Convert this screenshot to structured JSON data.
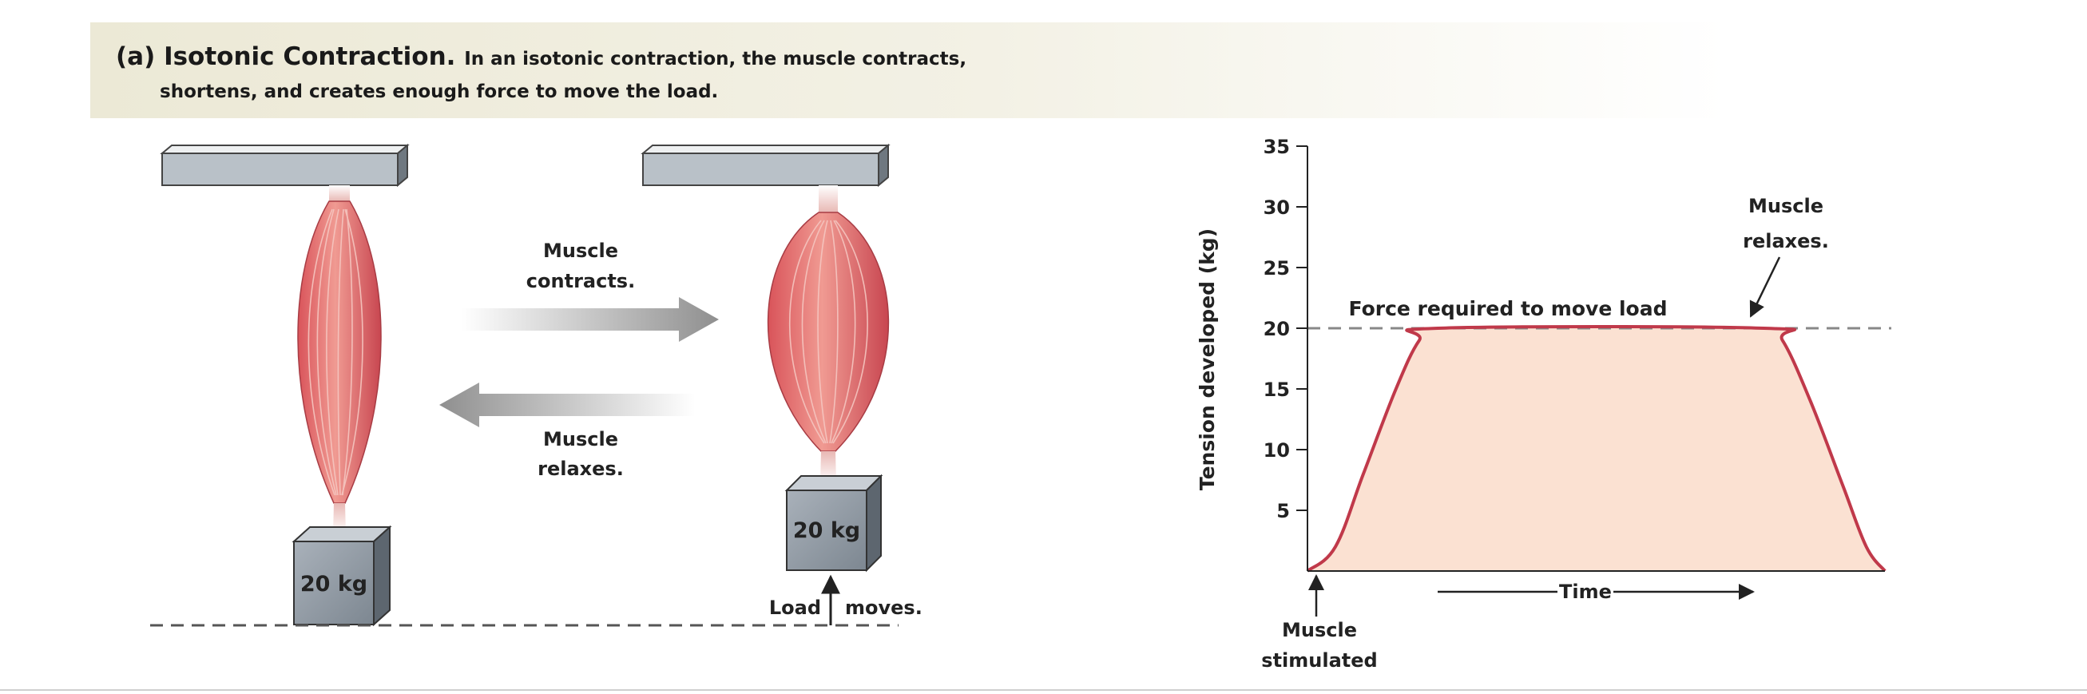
{
  "header": {
    "tag": "(a)",
    "title": "Isotonic Contraction.",
    "desc_line1": "In an isotonic contraction, the muscle contracts,",
    "desc_line2": "shortens, and creates enough force to move the load."
  },
  "diagram": {
    "load_label": "20 kg",
    "arrow_contracts": [
      "Muscle",
      "contracts."
    ],
    "arrow_relaxes": [
      "Muscle",
      "relaxes."
    ],
    "load_moves": [
      "Load",
      "moves."
    ]
  },
  "chart_data": {
    "type": "area",
    "ylabel": "Tension developed (kg)",
    "xlabel": "Time",
    "ylim": [
      0,
      35
    ],
    "yticks": [
      5,
      10,
      15,
      20,
      25,
      30,
      35
    ],
    "x": [
      0,
      0.3,
      0.6,
      0.95,
      1.2,
      1.4,
      4.9,
      5.1,
      5.4,
      5.75,
      6.0,
      6.2
    ],
    "y": [
      0,
      2,
      8,
      15,
      19,
      20,
      20,
      19,
      14,
      7,
      2,
      0
    ],
    "xlim": [
      0,
      6.2
    ],
    "threshold": {
      "value": 20,
      "label": "Force required to move load"
    },
    "annotations": {
      "stimulated": [
        "Muscle",
        "stimulated"
      ],
      "relaxes": [
        "Muscle",
        "relaxes."
      ]
    },
    "colors": {
      "line": "#c0394a",
      "fill": "#fbe1d2",
      "dashed": "#888888"
    }
  }
}
